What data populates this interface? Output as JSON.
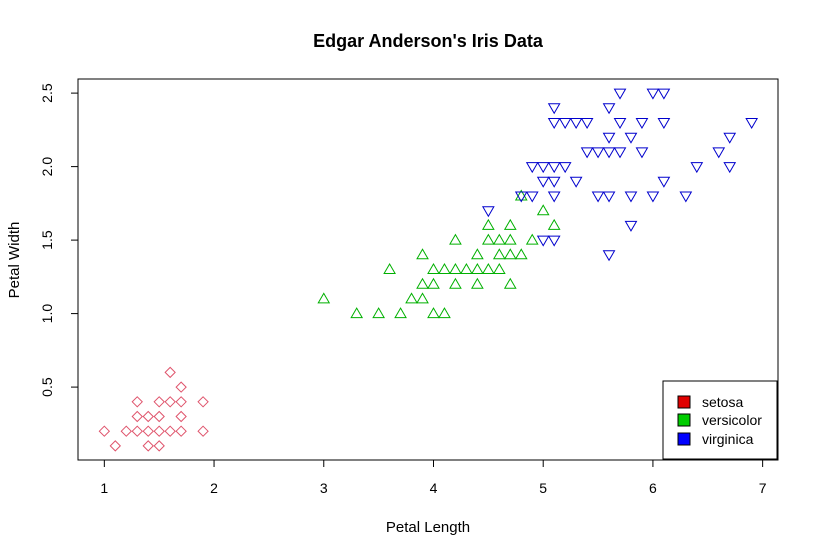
{
  "chart_data": {
    "type": "scatter",
    "title": "Edgar Anderson's Iris Data",
    "xlabel": "Petal Length",
    "ylabel": "Petal Width",
    "xlim": [
      0.76,
      7.14
    ],
    "ylim": [
      0.004,
      2.596
    ],
    "xticks": [
      1,
      2,
      3,
      4,
      5,
      6,
      7
    ],
    "yticks": [
      0.5,
      1.0,
      1.5,
      2.0,
      2.5
    ],
    "ytick_labels": [
      "0.5",
      "1.0",
      "1.5",
      "2.0",
      "2.5"
    ],
    "grid": false,
    "legend_position": "bottom-right",
    "series": [
      {
        "name": "setosa",
        "marker": "diamond",
        "color": "#DF536B",
        "legend_color": "#DF0000",
        "points": [
          [
            1.0,
            0.2
          ],
          [
            1.1,
            0.1
          ],
          [
            1.2,
            0.2
          ],
          [
            1.3,
            0.2
          ],
          [
            1.3,
            0.3
          ],
          [
            1.3,
            0.4
          ],
          [
            1.4,
            0.1
          ],
          [
            1.4,
            0.2
          ],
          [
            1.4,
            0.3
          ],
          [
            1.5,
            0.1
          ],
          [
            1.5,
            0.2
          ],
          [
            1.5,
            0.3
          ],
          [
            1.5,
            0.4
          ],
          [
            1.6,
            0.2
          ],
          [
            1.6,
            0.4
          ],
          [
            1.6,
            0.6
          ],
          [
            1.7,
            0.2
          ],
          [
            1.7,
            0.3
          ],
          [
            1.7,
            0.4
          ],
          [
            1.7,
            0.5
          ],
          [
            1.9,
            0.2
          ],
          [
            1.9,
            0.4
          ]
        ]
      },
      {
        "name": "versicolor",
        "marker": "triangle-up",
        "color": "#00B000",
        "legend_color": "#00CD00",
        "points": [
          [
            3.0,
            1.1
          ],
          [
            3.3,
            1.0
          ],
          [
            3.5,
            1.0
          ],
          [
            3.6,
            1.3
          ],
          [
            3.7,
            1.0
          ],
          [
            3.8,
            1.1
          ],
          [
            3.9,
            1.1
          ],
          [
            3.9,
            1.2
          ],
          [
            3.9,
            1.4
          ],
          [
            4.0,
            1.0
          ],
          [
            4.0,
            1.2
          ],
          [
            4.0,
            1.3
          ],
          [
            4.1,
            1.0
          ],
          [
            4.1,
            1.3
          ],
          [
            4.2,
            1.2
          ],
          [
            4.2,
            1.3
          ],
          [
            4.2,
            1.5
          ],
          [
            4.3,
            1.3
          ],
          [
            4.4,
            1.2
          ],
          [
            4.4,
            1.3
          ],
          [
            4.4,
            1.4
          ],
          [
            4.5,
            1.3
          ],
          [
            4.5,
            1.5
          ],
          [
            4.5,
            1.6
          ],
          [
            4.6,
            1.3
          ],
          [
            4.6,
            1.4
          ],
          [
            4.6,
            1.5
          ],
          [
            4.7,
            1.2
          ],
          [
            4.7,
            1.4
          ],
          [
            4.7,
            1.5
          ],
          [
            4.7,
            1.6
          ],
          [
            4.8,
            1.4
          ],
          [
            4.8,
            1.8
          ],
          [
            4.9,
            1.5
          ],
          [
            5.0,
            1.7
          ],
          [
            5.1,
            1.6
          ]
        ]
      },
      {
        "name": "virginica",
        "marker": "triangle-down",
        "color": "#0000CD",
        "legend_color": "#0000FF",
        "points": [
          [
            4.5,
            1.7
          ],
          [
            4.8,
            1.8
          ],
          [
            4.9,
            1.8
          ],
          [
            4.9,
            2.0
          ],
          [
            5.0,
            1.5
          ],
          [
            5.0,
            1.9
          ],
          [
            5.0,
            2.0
          ],
          [
            5.1,
            1.5
          ],
          [
            5.1,
            1.8
          ],
          [
            5.1,
            1.9
          ],
          [
            5.1,
            2.0
          ],
          [
            5.1,
            2.3
          ],
          [
            5.1,
            2.4
          ],
          [
            5.2,
            2.0
          ],
          [
            5.2,
            2.3
          ],
          [
            5.3,
            1.9
          ],
          [
            5.3,
            2.3
          ],
          [
            5.4,
            2.1
          ],
          [
            5.4,
            2.3
          ],
          [
            5.5,
            1.8
          ],
          [
            5.5,
            2.1
          ],
          [
            5.6,
            1.4
          ],
          [
            5.6,
            1.8
          ],
          [
            5.6,
            2.1
          ],
          [
            5.6,
            2.2
          ],
          [
            5.6,
            2.4
          ],
          [
            5.7,
            2.1
          ],
          [
            5.7,
            2.3
          ],
          [
            5.7,
            2.5
          ],
          [
            5.8,
            1.6
          ],
          [
            5.8,
            1.8
          ],
          [
            5.8,
            2.2
          ],
          [
            5.9,
            2.1
          ],
          [
            5.9,
            2.3
          ],
          [
            6.0,
            1.8
          ],
          [
            6.0,
            2.5
          ],
          [
            6.1,
            1.9
          ],
          [
            6.1,
            2.3
          ],
          [
            6.1,
            2.5
          ],
          [
            6.3,
            1.8
          ],
          [
            6.4,
            2.0
          ],
          [
            6.6,
            2.1
          ],
          [
            6.7,
            2.0
          ],
          [
            6.7,
            2.2
          ],
          [
            6.9,
            2.3
          ]
        ]
      }
    ]
  }
}
